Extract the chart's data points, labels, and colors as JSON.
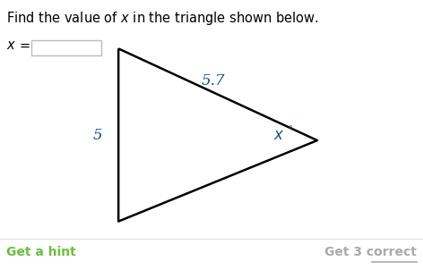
{
  "title": "Find the value of $x$ in the triangle shown below.",
  "title_fontsize": 10.5,
  "title_color": "#000000",
  "bg_color": "#ffffff",
  "tl": [
    0.28,
    0.82
  ],
  "bl": [
    0.28,
    0.18
  ],
  "r": [
    0.75,
    0.48
  ],
  "label_side_left": "5",
  "label_side_left_color": "#1a5276",
  "label_hypotenuse": "5.7",
  "label_hypotenuse_color": "#1a5276",
  "label_angle_x": "x",
  "label_angle_deg": "°",
  "label_angle_color": "#1a5276",
  "input_label_x": "x",
  "input_label_eq": " =",
  "hint_text": "Get a hint",
  "hint_color": "#6abf3c",
  "correct_text": "Get 3 correct",
  "correct_color": "#aaaaaa",
  "line_color": "#000000",
  "line_width": 1.8
}
